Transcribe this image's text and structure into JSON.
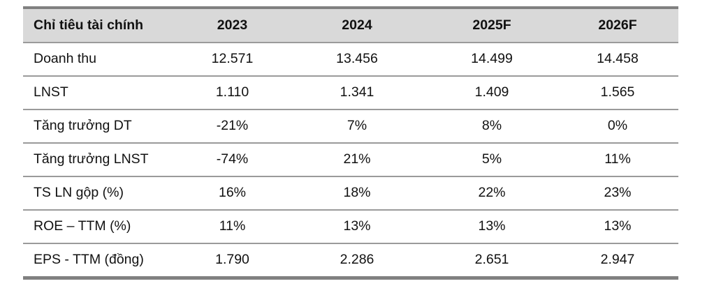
{
  "table": {
    "headers": [
      "Chỉ tiêu tài chính",
      "2023",
      "2024",
      "2025F",
      "2026F"
    ],
    "rows": [
      {
        "label": "Doanh thu",
        "values": [
          "12.571",
          "13.456",
          "14.499",
          "14.458"
        ]
      },
      {
        "label": "LNST",
        "values": [
          "1.110",
          "1.341",
          "1.409",
          "1.565"
        ]
      },
      {
        "label": "Tăng trưởng DT",
        "values": [
          "-21%",
          "7%",
          "8%",
          "0%"
        ]
      },
      {
        "label": "Tăng trưởng LNST",
        "values": [
          "-74%",
          "21%",
          "5%",
          "11%"
        ]
      },
      {
        "label": "TS LN gộp (%)",
        "values": [
          "16%",
          "18%",
          "22%",
          "23%"
        ]
      },
      {
        "label": "ROE – TTM (%)",
        "values": [
          "11%",
          "13%",
          "13%",
          "13%"
        ]
      },
      {
        "label": "EPS - TTM (đồng)",
        "values": [
          "1.790",
          "2.286",
          "2.651",
          "2.947"
        ]
      }
    ]
  },
  "colors": {
    "header_bg": "#d9d9d9",
    "rule": "#808080",
    "row_divider": "#9a9a9a"
  }
}
